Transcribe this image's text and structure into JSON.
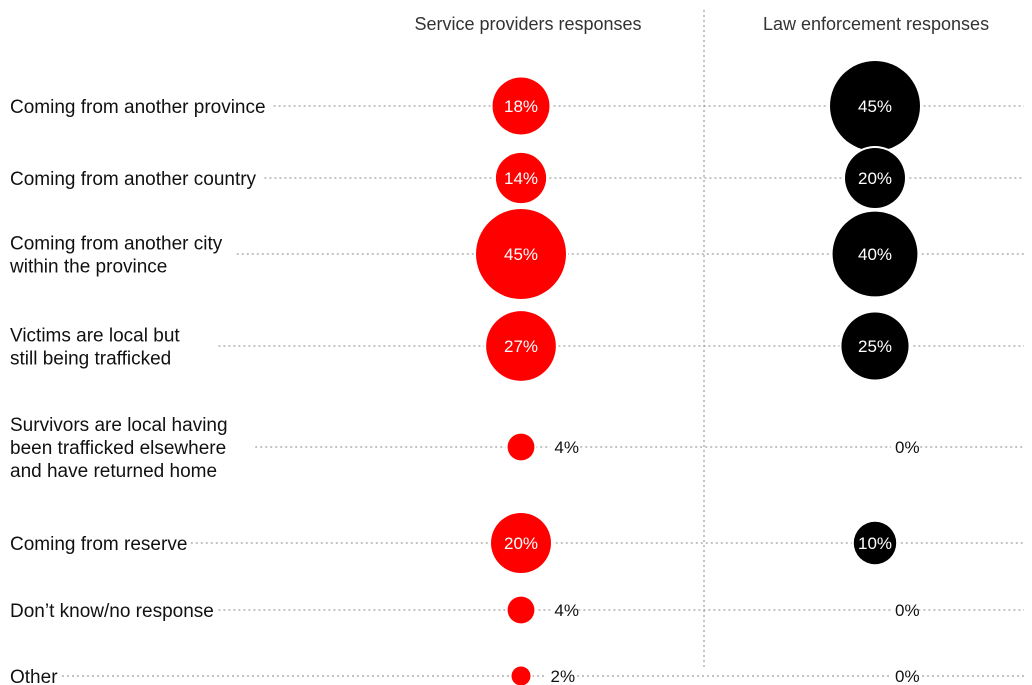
{
  "chart_data": {
    "type": "bubble",
    "title": "",
    "columns": [
      {
        "name": "Service providers responses",
        "color": "#ff0000"
      },
      {
        "name": "Law enforcement responses",
        "color": "#000000"
      }
    ],
    "categories": [
      [
        "Coming from another province"
      ],
      [
        "Coming from another country"
      ],
      [
        "Coming from another city",
        "within the province"
      ],
      [
        "Victims are local but",
        "still being trafficked"
      ],
      [
        "Survivors are local having",
        "been trafficked elsewhere",
        "and have returned home"
      ],
      [
        "Coming from reserve"
      ],
      [
        "Don’t know/no response"
      ],
      [
        "Other"
      ]
    ],
    "series": [
      {
        "name": "Service providers responses",
        "values": [
          18,
          14,
          45,
          27,
          4,
          20,
          4,
          2
        ]
      },
      {
        "name": "Law enforcement responses",
        "values": [
          45,
          20,
          40,
          25,
          0,
          10,
          0,
          0
        ]
      }
    ],
    "unit": "%"
  }
}
